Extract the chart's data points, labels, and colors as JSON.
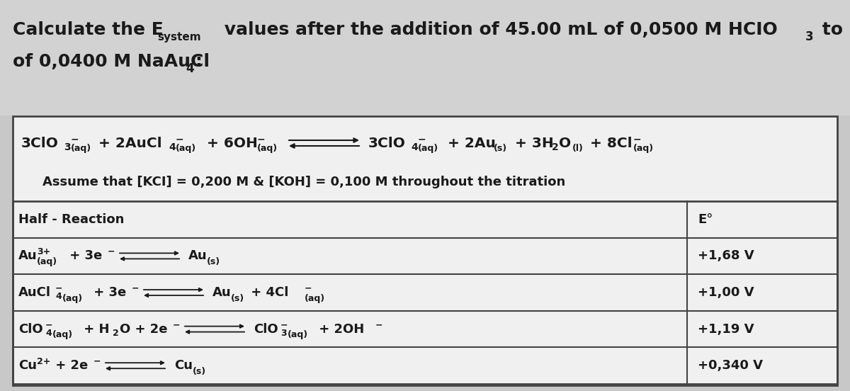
{
  "bg_color": "#c8c8c8",
  "box_bg": "#ffffff",
  "box_border": "#444444",
  "text_color": "#1a1a1a",
  "title_bg": "#d4d4d4",
  "assume_text": "Assume that [KCI] = 0,200 M & [KOH] = 0,100 M throughout the titration",
  "header_reaction": "Half - Reaction",
  "header_eo": "E°",
  "eo_values": [
    "+1,68 V",
    "+1,00 V",
    "+1,19 V",
    "+0,340 V"
  ],
  "figsize": [
    12.0,
    5.52
  ],
  "dpi": 100
}
